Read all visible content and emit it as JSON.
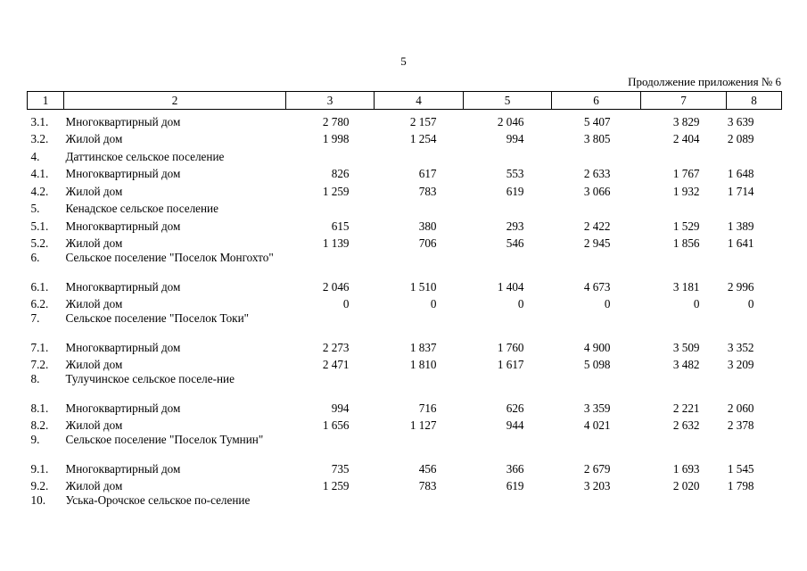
{
  "page_number": "5",
  "subtitle": "Продолжение приложения № 6",
  "header": [
    "1",
    "2",
    "3",
    "4",
    "5",
    "6",
    "7",
    "8"
  ],
  "rows": [
    {
      "num": "3.1.",
      "name": "Многоквартирный дом",
      "values": [
        "2 780",
        "2 157",
        "2 046",
        "5 407",
        "3 829",
        "3 639"
      ]
    },
    {
      "num": "3.2.",
      "name": "Жилой дом",
      "values": [
        "1 998",
        "1 254",
        "994",
        "3 805",
        "2 404",
        "2 089"
      ]
    },
    {
      "num": "4.",
      "name": "Даттинское сельское поселение",
      "group": true
    },
    {
      "num": "4.1.",
      "name": "Многоквартирный дом",
      "values": [
        "826",
        "617",
        "553",
        "2 633",
        "1 767",
        "1 648"
      ]
    },
    {
      "num": "4.2.",
      "name": "Жилой дом",
      "values": [
        "1 259",
        "783",
        "619",
        "3 066",
        "1 932",
        "1 714"
      ]
    },
    {
      "num": "5.",
      "name": "Кенадское сельское поселение",
      "group": true
    },
    {
      "num": "5.1.",
      "name": "Многоквартирный дом",
      "values": [
        "615",
        "380",
        "293",
        "2 422",
        "1 529",
        "1 389"
      ]
    },
    {
      "num": "5.2.",
      "name": "Жилой дом",
      "values": [
        "1 139",
        "706",
        "546",
        "2 945",
        "1 856",
        "1 641"
      ]
    },
    {
      "num": "6.",
      "name": "Сельское поселение \"Поселок Монгохто\"",
      "group": true,
      "wrap": true
    },
    {
      "num": "6.1.",
      "name": "Многоквартирный дом",
      "values": [
        "2 046",
        "1 510",
        "1 404",
        "4 673",
        "3 181",
        "2 996"
      ]
    },
    {
      "num": "6.2.",
      "name": "Жилой дом",
      "values": [
        "0",
        "0",
        "0",
        "0",
        "0",
        "0"
      ]
    },
    {
      "num": "7.",
      "name": "Сельское поселение \"Поселок Токи\"",
      "group": true,
      "wrap": true
    },
    {
      "num": "7.1.",
      "name": "Многоквартирный дом",
      "values": [
        "2 273",
        "1 837",
        "1 760",
        "4 900",
        "3 509",
        "3 352"
      ]
    },
    {
      "num": "7.2.",
      "name": "Жилой дом",
      "values": [
        "2 471",
        "1 810",
        "1 617",
        "5 098",
        "3 482",
        "3 209"
      ]
    },
    {
      "num": "8.",
      "name": "Тулучинское сельское поселе-ние",
      "group": true,
      "wrap": true
    },
    {
      "num": "8.1.",
      "name": "Многоквартирный дом",
      "values": [
        "994",
        "716",
        "626",
        "3 359",
        "2 221",
        "2 060"
      ]
    },
    {
      "num": "8.2.",
      "name": "Жилой дом",
      "values": [
        "1 656",
        "1 127",
        "944",
        "4 021",
        "2 632",
        "2 378"
      ]
    },
    {
      "num": "9.",
      "name": "Сельское поселение \"Поселок Тумнин\"",
      "group": true,
      "wrap": true
    },
    {
      "num": "9.1.",
      "name": "Многоквартирный дом",
      "values": [
        "735",
        "456",
        "366",
        "2 679",
        "1 693",
        "1 545"
      ]
    },
    {
      "num": "9.2.",
      "name": "Жилой дом",
      "values": [
        "1 259",
        "783",
        "619",
        "3 203",
        "2 020",
        "1 798"
      ]
    },
    {
      "num": "10.",
      "name": "Уська-Орочское сельское по-селение",
      "group": true,
      "wrap": true
    }
  ]
}
